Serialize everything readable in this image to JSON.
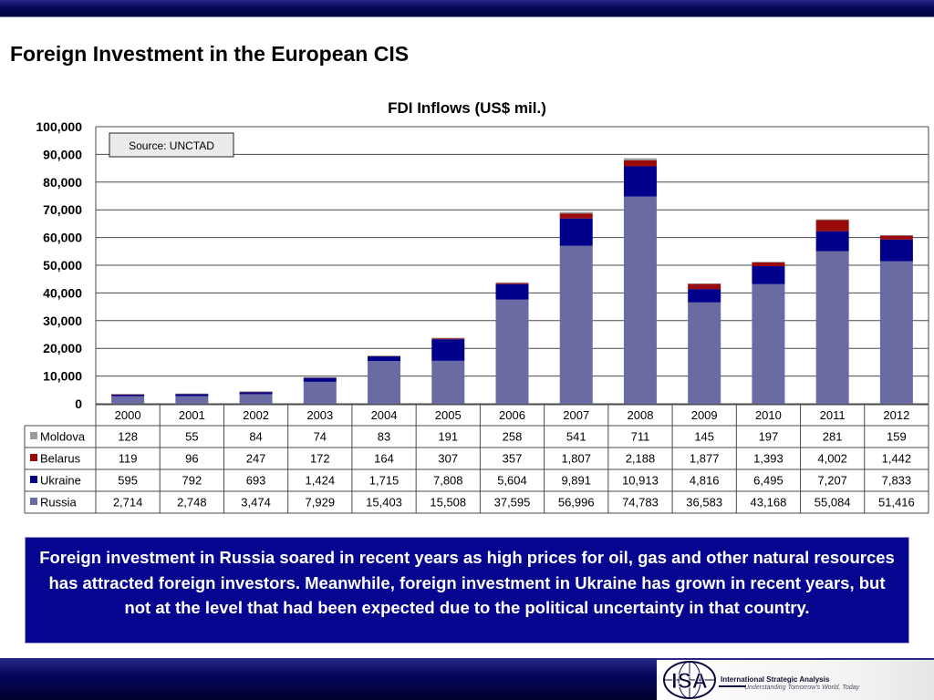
{
  "slide": {
    "title": "Foreign Investment in the European CIS",
    "caption": "Foreign investment in Russia soared in recent years as high prices for oil, gas and other natural resources has attracted foreign investors.  Meanwhile, foreign investment in Ukraine has grown in recent years, but not at the level that had been expected due to the political uncertainty in that country."
  },
  "logo": {
    "mark_text": "ISA",
    "name": "International Strategic Analysis",
    "tagline": "Understanding Tomorrow's World, Today"
  },
  "chart_data": {
    "type": "bar",
    "stacked": true,
    "title": "FDI Inflows (US$ mil.)",
    "note": "Source: UNCTAD",
    "categories": [
      "2000",
      "2001",
      "2002",
      "2003",
      "2004",
      "2005",
      "2006",
      "2007",
      "2008",
      "2009",
      "2010",
      "2011",
      "2012"
    ],
    "ylim": [
      0,
      100000
    ],
    "yticks": [
      0,
      10000,
      20000,
      30000,
      40000,
      50000,
      60000,
      70000,
      80000,
      90000,
      100000
    ],
    "ytick_labels": [
      "0",
      "10,000",
      "20,000",
      "30,000",
      "40,000",
      "50,000",
      "60,000",
      "70,000",
      "80,000",
      "90,000",
      "100,000"
    ],
    "grid": true,
    "legend_position": "table-below",
    "series": [
      {
        "name": "Russia",
        "color": "#6b6ba3",
        "values": [
          2714,
          2748,
          3474,
          7929,
          15403,
          15508,
          37595,
          56996,
          74783,
          36583,
          43168,
          55084,
          51416
        ],
        "labels": [
          "2,714",
          "2,748",
          "3,474",
          "7,929",
          "15,403",
          "15,508",
          "37,595",
          "56,996",
          "74,783",
          "36,583",
          "43,168",
          "55,084",
          "51,416"
        ]
      },
      {
        "name": "Ukraine",
        "color": "#00008b",
        "values": [
          595,
          792,
          693,
          1424,
          1715,
          7808,
          5604,
          9891,
          10913,
          4816,
          6495,
          7207,
          7833
        ],
        "labels": [
          "595",
          "792",
          "693",
          "1,424",
          "1,715",
          "7,808",
          "5,604",
          "9,891",
          "10,913",
          "4,816",
          "6,495",
          "7,207",
          "7,833"
        ]
      },
      {
        "name": "Belarus",
        "color": "#9a0a0a",
        "values": [
          119,
          96,
          247,
          172,
          164,
          307,
          357,
          1807,
          2188,
          1877,
          1393,
          4002,
          1442
        ],
        "labels": [
          "119",
          "96",
          "247",
          "172",
          "164",
          "307",
          "357",
          "1,807",
          "2,188",
          "1,877",
          "1,393",
          "4,002",
          "1,442"
        ]
      },
      {
        "name": "Moldova",
        "color": "#9a9a9a",
        "values": [
          128,
          55,
          84,
          74,
          83,
          191,
          258,
          541,
          711,
          145,
          197,
          281,
          159
        ],
        "labels": [
          "128",
          "55",
          "84",
          "74",
          "83",
          "191",
          "258",
          "541",
          "711",
          "145",
          "197",
          "281",
          "159"
        ]
      }
    ],
    "table_row_order": [
      "Moldova",
      "Belarus",
      "Ukraine",
      "Russia"
    ]
  }
}
